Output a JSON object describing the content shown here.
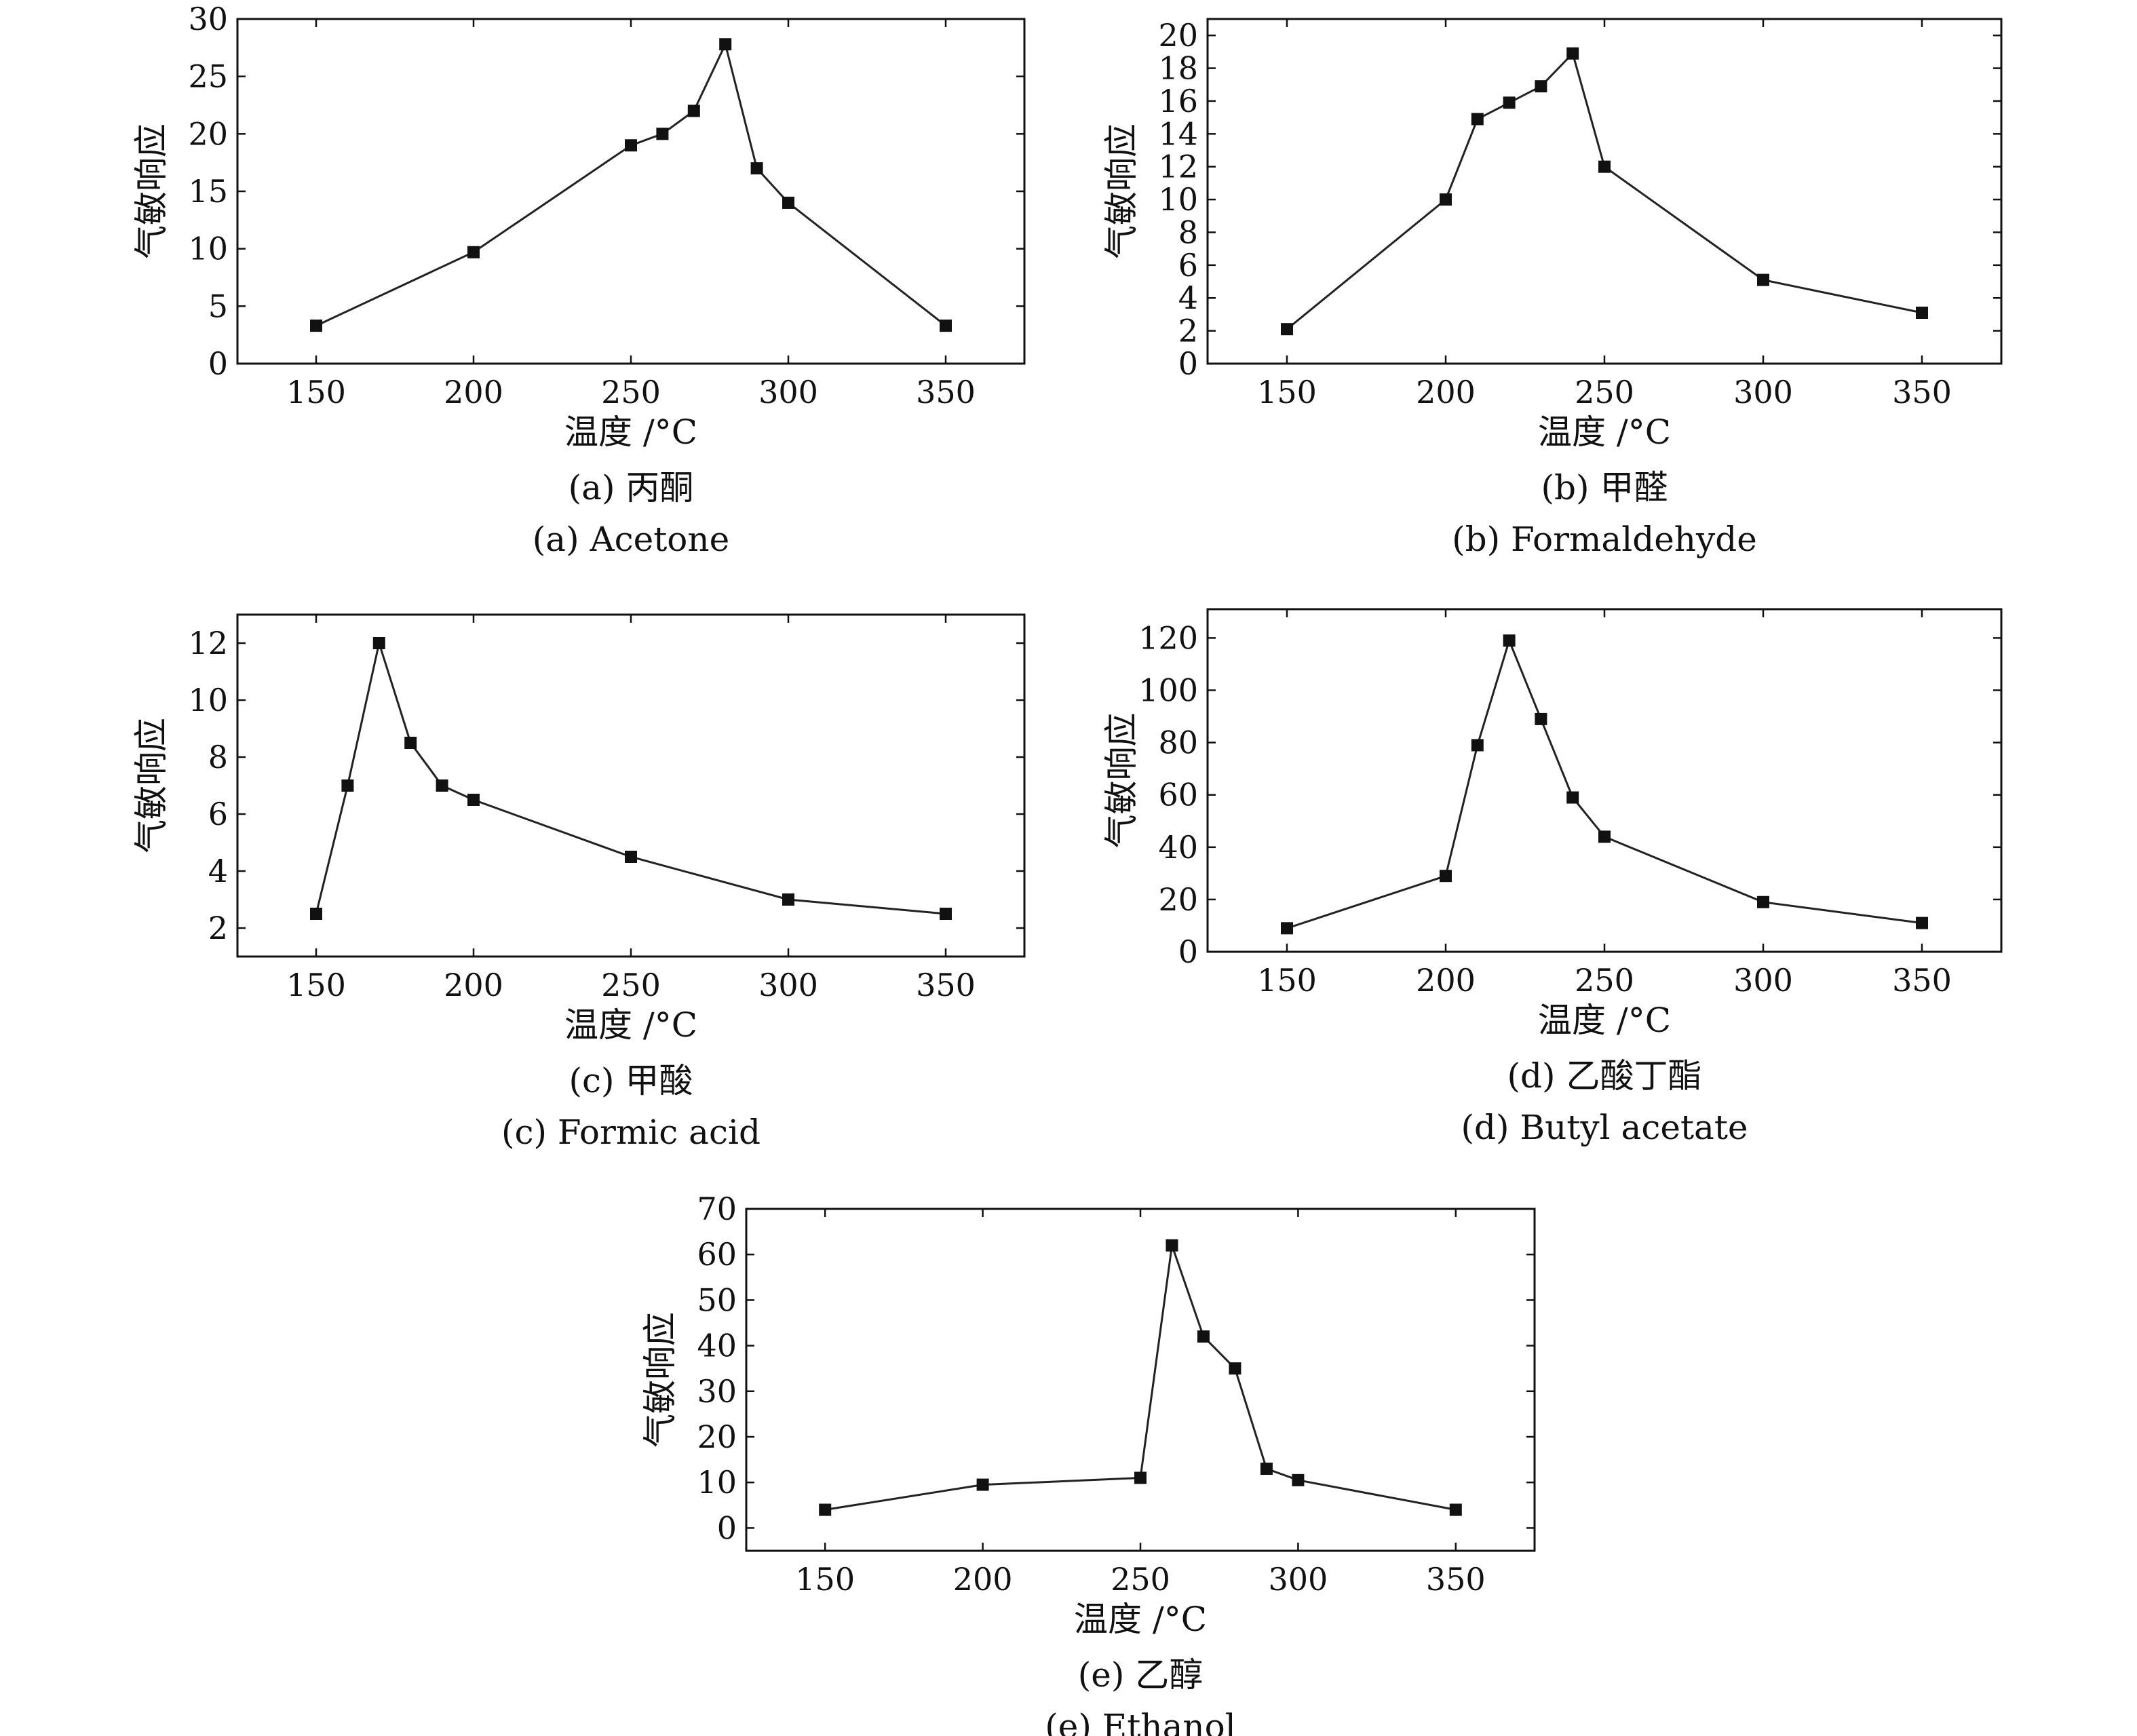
{
  "chart_data": [
    {
      "type": "line",
      "ylabel": "气敏响应",
      "xlabel": "温度 /°C",
      "caption_cn": "(a) 丙酮",
      "caption_en": "(a) Acetone",
      "xlim": [
        125,
        375
      ],
      "ylim": [
        0,
        30
      ],
      "xticks": [
        150,
        200,
        250,
        300,
        350
      ],
      "yticks": [
        0,
        5,
        10,
        15,
        20,
        25,
        30
      ],
      "x": [
        150,
        200,
        250,
        260,
        270,
        280,
        290,
        300,
        350
      ],
      "y": [
        3.3,
        9.7,
        19,
        20,
        22,
        27.8,
        17,
        14,
        3.3
      ],
      "marker": "square",
      "grid": false
    },
    {
      "type": "line",
      "ylabel": "气敏响应",
      "xlabel": "温度 /°C",
      "caption_cn": "(b) 甲醛",
      "caption_en": "(b) Formaldehyde",
      "xlim": [
        125,
        375
      ],
      "ylim": [
        0,
        21
      ],
      "xticks": [
        150,
        200,
        250,
        300,
        350
      ],
      "yticks": [
        0,
        2,
        4,
        6,
        8,
        10,
        12,
        14,
        16,
        18,
        20
      ],
      "x": [
        150,
        200,
        210,
        220,
        230,
        240,
        250,
        300,
        350
      ],
      "y": [
        2.1,
        10,
        14.9,
        15.9,
        16.9,
        18.9,
        12,
        5.1,
        3.1
      ],
      "marker": "square",
      "grid": false
    },
    {
      "type": "line",
      "ylabel": "气敏响应",
      "xlabel": "温度 /°C",
      "caption_cn": "(c) 甲酸",
      "caption_en": "(c) Formic acid",
      "xlim": [
        125,
        375
      ],
      "ylim": [
        1,
        13
      ],
      "xticks": [
        150,
        200,
        250,
        300,
        350
      ],
      "yticks": [
        2,
        4,
        6,
        8,
        10,
        12
      ],
      "x": [
        150,
        160,
        170,
        180,
        190,
        200,
        250,
        300,
        350
      ],
      "y": [
        2.5,
        7,
        12,
        8.5,
        7,
        6.5,
        4.5,
        3,
        2.5
      ],
      "marker": "square",
      "grid": false
    },
    {
      "type": "line",
      "ylabel": "气敏响应",
      "xlabel": "温度 /°C",
      "caption_cn": "(d) 乙酸丁酯",
      "caption_en": "(d) Butyl acetate",
      "xlim": [
        125,
        375
      ],
      "ylim": [
        0,
        131
      ],
      "xticks": [
        150,
        200,
        250,
        300,
        350
      ],
      "yticks": [
        0,
        20,
        40,
        60,
        80,
        100,
        120
      ],
      "x": [
        150,
        200,
        210,
        220,
        230,
        240,
        250,
        300,
        350
      ],
      "y": [
        9,
        29,
        79,
        119,
        89,
        59,
        44,
        19,
        11
      ],
      "marker": "square",
      "grid": false
    },
    {
      "type": "line",
      "ylabel": "气敏响应",
      "xlabel": "温度 /°C",
      "caption_cn": "(e) 乙醇",
      "caption_en": "(e) Ethanol",
      "xlim": [
        125,
        375
      ],
      "ylim": [
        -5,
        70
      ],
      "xticks": [
        150,
        200,
        250,
        300,
        350
      ],
      "yticks": [
        0,
        10,
        20,
        30,
        40,
        50,
        60,
        70
      ],
      "x": [
        150,
        200,
        250,
        260,
        270,
        280,
        290,
        300,
        350
      ],
      "y": [
        4,
        9.5,
        11,
        62,
        42,
        35,
        13,
        10.5,
        4
      ],
      "marker": "square",
      "grid": false
    }
  ]
}
